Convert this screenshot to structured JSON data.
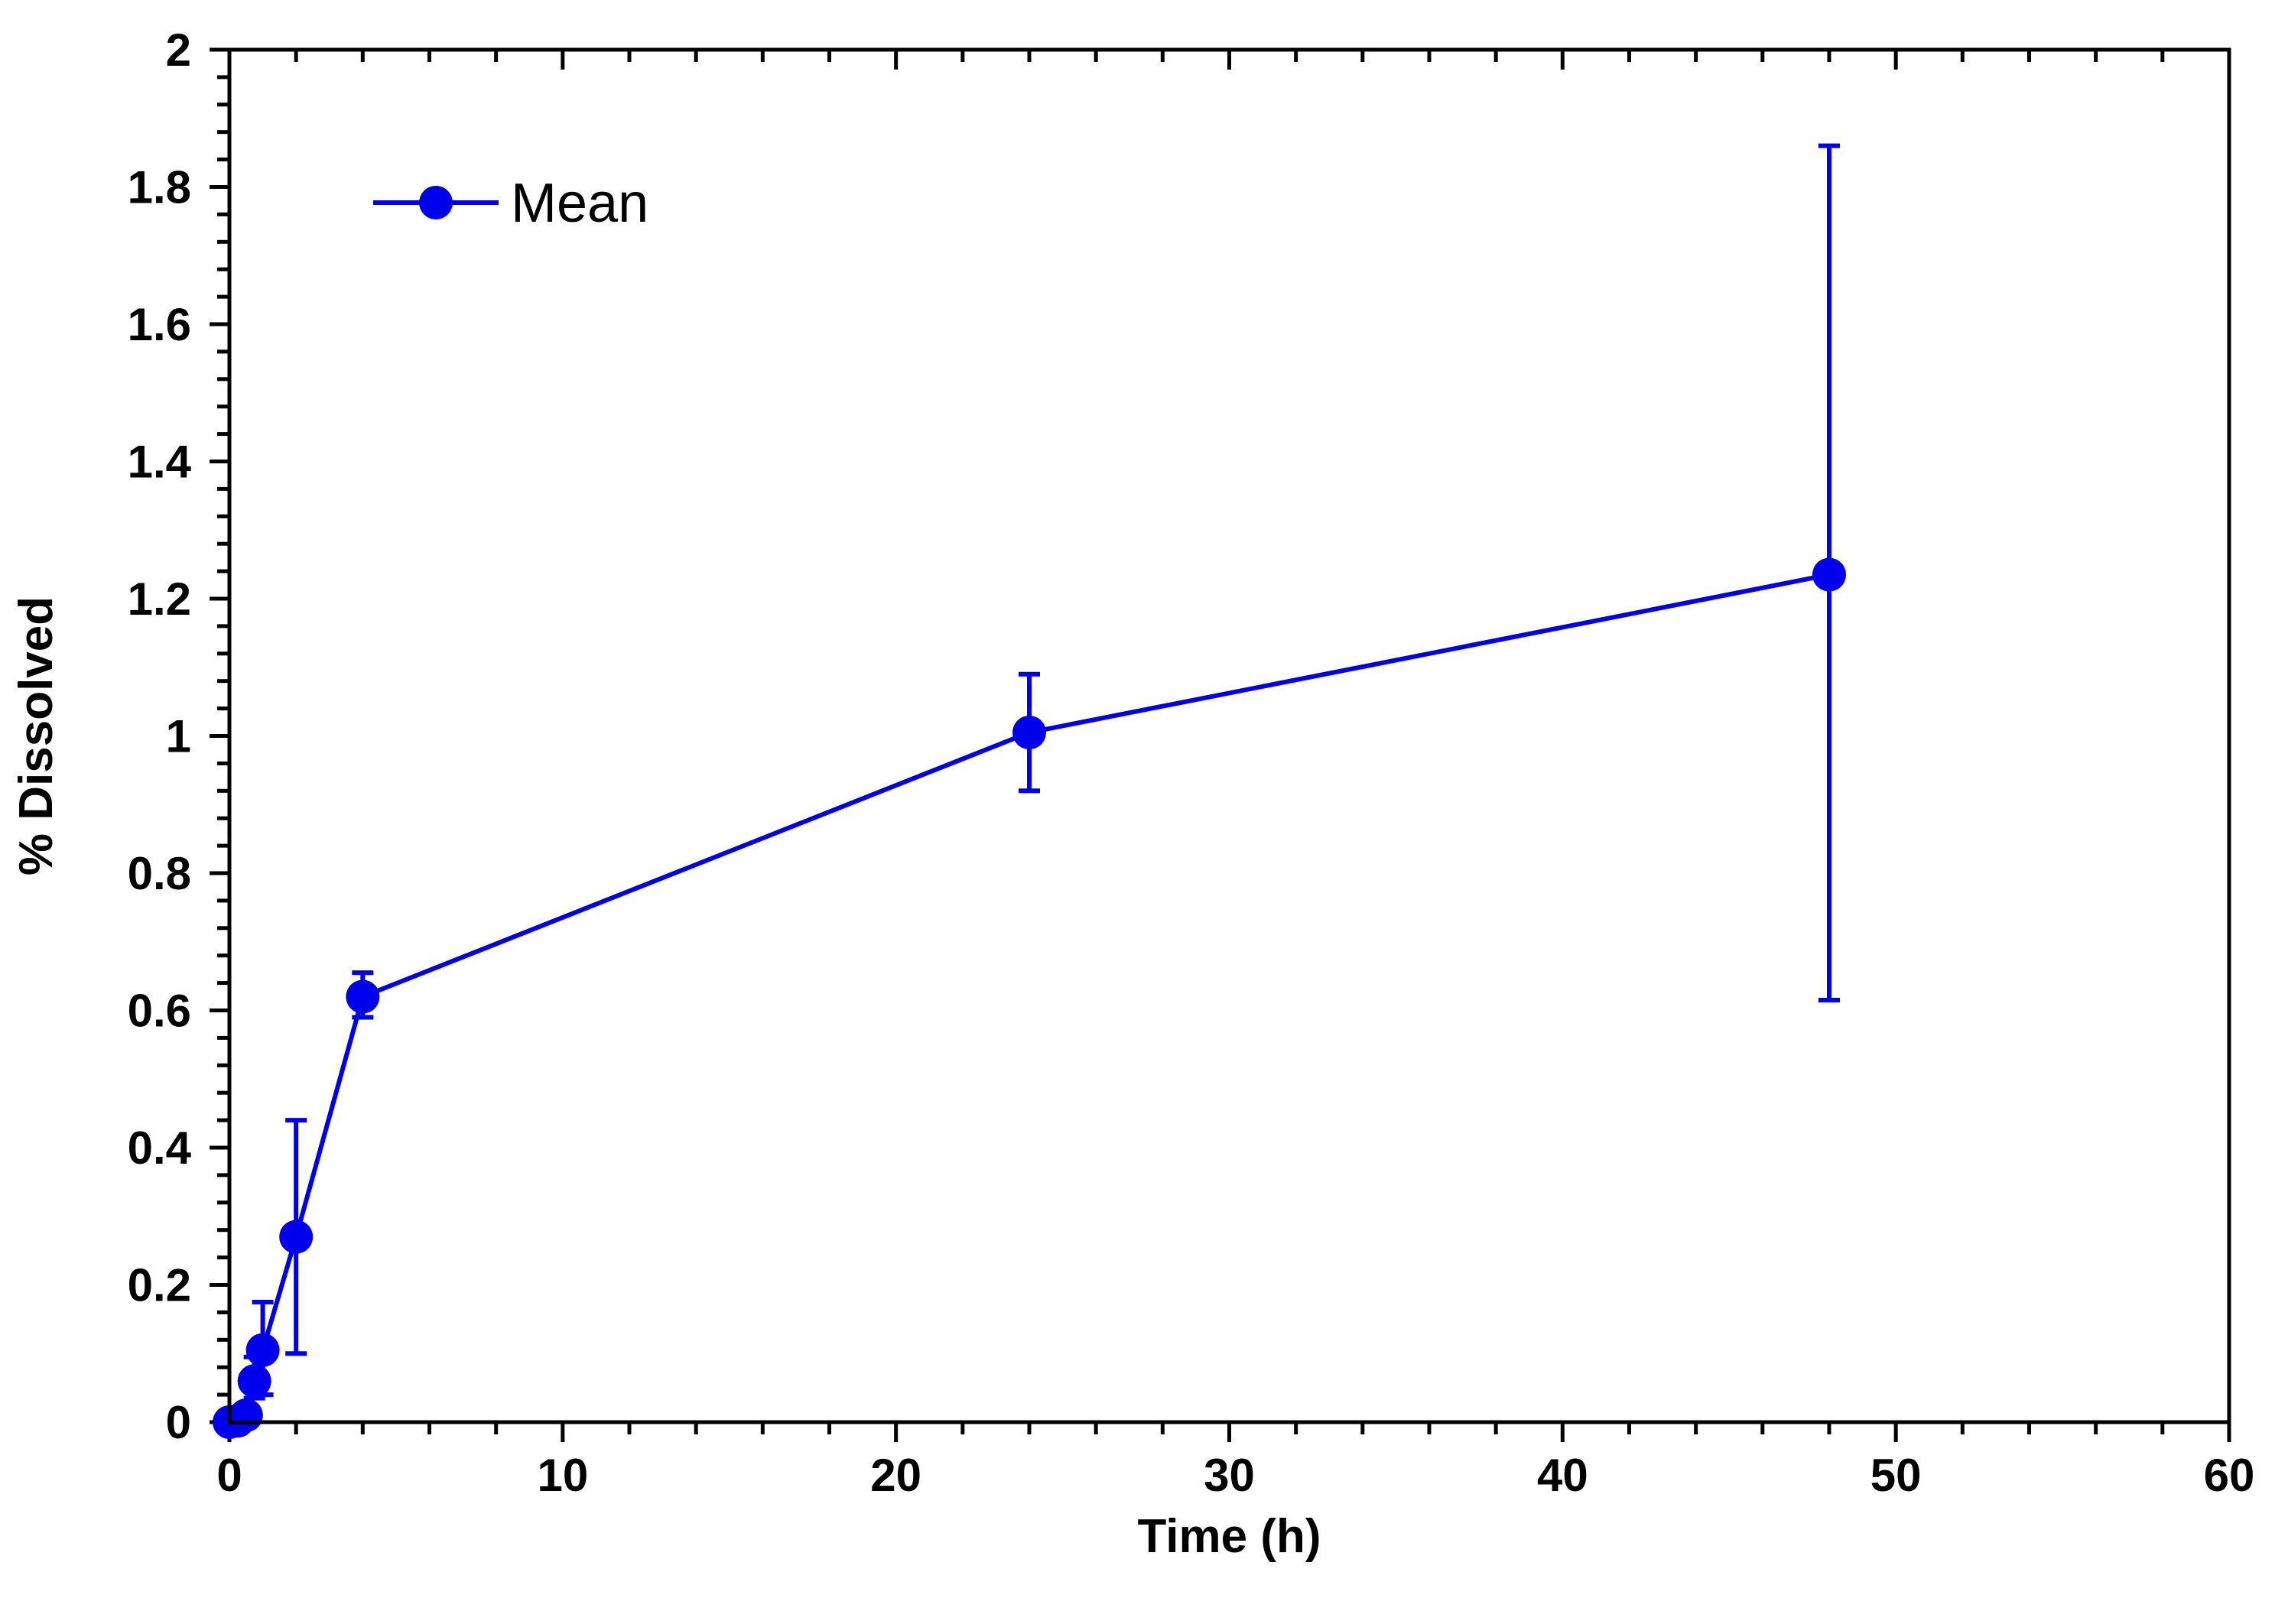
{
  "chart_data": {
    "type": "line",
    "title": "",
    "xlabel": "Time (h)",
    "ylabel": "% Dissolved",
    "xlim": [
      0,
      60
    ],
    "ylim": [
      0,
      2
    ],
    "x_major_ticks": [
      0,
      10,
      20,
      30,
      40,
      50,
      60
    ],
    "x_tick_labels": [
      "0",
      "10",
      "20",
      "30",
      "40",
      "50",
      "60"
    ],
    "x_minor_step": 2,
    "y_major_ticks": [
      0,
      0.2,
      0.4,
      0.6,
      0.8,
      1.0,
      1.2,
      1.4,
      1.6,
      1.8,
      2.0
    ],
    "y_tick_labels": [
      "0",
      "0.2",
      "0.4",
      "0.6",
      "0.8",
      "1",
      "1.2",
      "1.4",
      "1.6",
      "1.8",
      "2"
    ],
    "y_minor_step": 0.04,
    "grid": false,
    "legend_position": "top-left",
    "series": [
      {
        "name": "Mean",
        "color": "#0000ee",
        "marker": "circle",
        "x": [
          0,
          0.25,
          0.5,
          0.75,
          1,
          2,
          4,
          24,
          48
        ],
        "y": [
          0,
          0.002,
          0.01,
          0.06,
          0.105,
          0.27,
          0.62,
          1.005,
          1.235
        ],
        "error_low": [
          null,
          null,
          0.0,
          0.035,
          0.04,
          0.1,
          0.59,
          0.92,
          0.615
        ],
        "error_high": [
          null,
          null,
          0.02,
          0.095,
          0.175,
          0.44,
          0.655,
          1.09,
          1.86
        ]
      }
    ]
  }
}
